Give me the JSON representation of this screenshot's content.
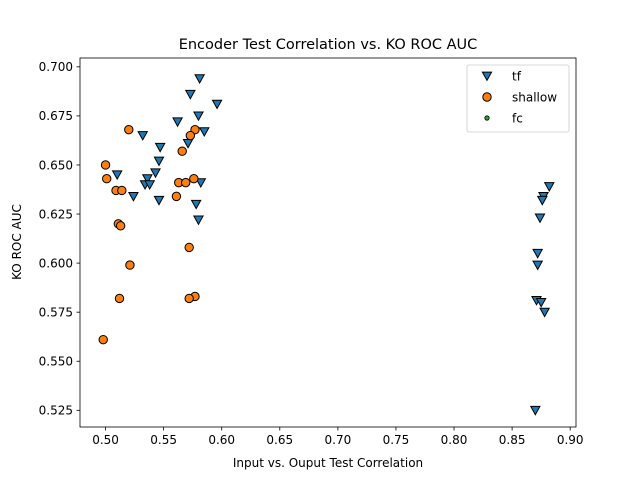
{
  "chart_data": {
    "type": "scatter",
    "title": "Encoder Test Correlation vs. KO ROC AUC",
    "xlabel": "Input vs. Ouput Test Correlation",
    "ylabel": "KO ROC AUC",
    "xlim": [
      0.478,
      0.905
    ],
    "ylim": [
      0.5165,
      0.7045
    ],
    "xticks": [
      0.5,
      0.55,
      0.6,
      0.65,
      0.7,
      0.75,
      0.8,
      0.85,
      0.9
    ],
    "xtick_labels": [
      "0.50",
      "0.55",
      "0.60",
      "0.65",
      "0.70",
      "0.75",
      "0.80",
      "0.85",
      "0.90"
    ],
    "yticks": [
      0.525,
      0.55,
      0.575,
      0.6,
      0.625,
      0.65,
      0.675,
      0.7
    ],
    "ytick_labels": [
      "0.525",
      "0.550",
      "0.575",
      "0.600",
      "0.625",
      "0.650",
      "0.675",
      "0.700"
    ],
    "grid": false,
    "legend_position": "top-right",
    "series": [
      {
        "name": "tf",
        "marker": "triangle-down",
        "color": "#1f77b4",
        "points": [
          [
            0.581,
            0.694
          ],
          [
            0.596,
            0.681
          ],
          [
            0.573,
            0.686
          ],
          [
            0.58,
            0.675
          ],
          [
            0.585,
            0.667
          ],
          [
            0.562,
            0.672
          ],
          [
            0.532,
            0.665
          ],
          [
            0.571,
            0.661
          ],
          [
            0.547,
            0.659
          ],
          [
            0.546,
            0.652
          ],
          [
            0.543,
            0.646
          ],
          [
            0.536,
            0.643
          ],
          [
            0.534,
            0.64
          ],
          [
            0.538,
            0.64
          ],
          [
            0.51,
            0.645
          ],
          [
            0.582,
            0.641
          ],
          [
            0.524,
            0.634
          ],
          [
            0.546,
            0.632
          ],
          [
            0.578,
            0.63
          ],
          [
            0.58,
            0.622
          ],
          [
            0.882,
            0.639
          ],
          [
            0.877,
            0.634
          ],
          [
            0.876,
            0.632
          ],
          [
            0.874,
            0.623
          ],
          [
            0.872,
            0.605
          ],
          [
            0.872,
            0.599
          ],
          [
            0.871,
            0.581
          ],
          [
            0.875,
            0.58
          ],
          [
            0.878,
            0.575
          ],
          [
            0.87,
            0.525
          ]
        ]
      },
      {
        "name": "shallow",
        "marker": "circle",
        "color": "#ff7f0e",
        "points": [
          [
            0.52,
            0.668
          ],
          [
            0.577,
            0.668
          ],
          [
            0.573,
            0.665
          ],
          [
            0.566,
            0.657
          ],
          [
            0.5,
            0.65
          ],
          [
            0.501,
            0.643
          ],
          [
            0.576,
            0.643
          ],
          [
            0.563,
            0.641
          ],
          [
            0.569,
            0.641
          ],
          [
            0.509,
            0.637
          ],
          [
            0.514,
            0.637
          ],
          [
            0.561,
            0.634
          ],
          [
            0.511,
            0.62
          ],
          [
            0.513,
            0.619
          ],
          [
            0.572,
            0.608
          ],
          [
            0.521,
            0.599
          ],
          [
            0.512,
            0.582
          ],
          [
            0.577,
            0.583
          ],
          [
            0.572,
            0.582
          ],
          [
            0.498,
            0.561
          ]
        ]
      },
      {
        "name": "fc",
        "marker": "small-circle",
        "color": "#2ca02c",
        "points": []
      }
    ]
  }
}
